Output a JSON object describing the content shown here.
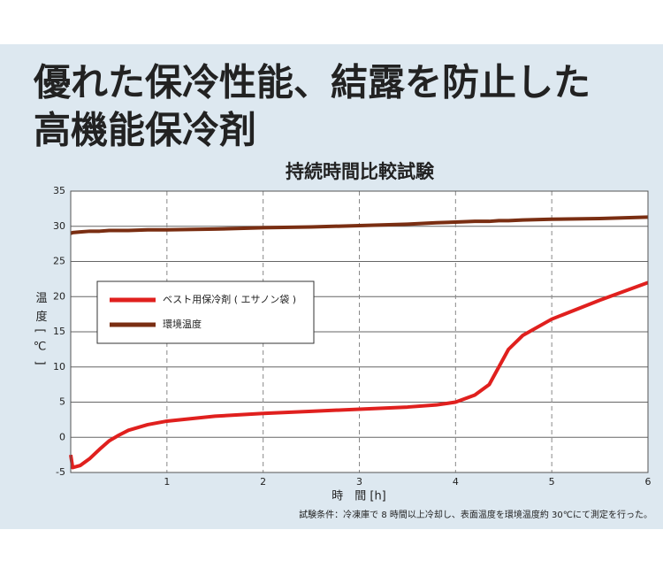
{
  "header": {
    "title_lines": [
      "優れた保冷性能、結露を防止した",
      "高機能保冷剤"
    ]
  },
  "chart_data": {
    "type": "line",
    "title": "持続時間比較試験",
    "y_label": "温度[℃]",
    "x_label": "時　間 [h]",
    "note": "試験条件：冷凍庫で 8 時間以上冷却し、表面温度を環境温度約 30℃にて測定を行った。",
    "x": [
      0,
      0.02,
      0.1,
      0.2,
      0.3,
      0.4,
      0.5,
      0.6,
      0.8,
      1,
      1.5,
      2,
      2.5,
      3,
      3.5,
      3.8,
      4,
      4.2,
      4.35,
      4.45,
      4.55,
      4.7,
      5,
      5.5,
      6
    ],
    "series": [
      {
        "name": "ベスト用保冷剤 ( エサノン袋 )",
        "color": "#e0201e",
        "values": [
          -2.5,
          -4.3,
          -4,
          -3,
          -1.7,
          -0.5,
          0.3,
          1,
          1.8,
          2.3,
          3,
          3.4,
          3.7,
          4,
          4.3,
          4.6,
          5,
          6,
          7.5,
          10,
          12.5,
          14.5,
          16.8,
          19.5,
          22
        ]
      },
      {
        "name": "環境温度",
        "color": "#7a2e12",
        "values": [
          29,
          29.1,
          29.2,
          29.3,
          29.3,
          29.4,
          29.4,
          29.4,
          29.5,
          29.5,
          29.6,
          29.8,
          29.9,
          30.1,
          30.3,
          30.5,
          30.6,
          30.7,
          30.7,
          30.8,
          30.8,
          30.9,
          31,
          31.1,
          31.3
        ]
      }
    ],
    "xlim": [
      0,
      6
    ],
    "xticks": [
      1,
      2,
      3,
      4,
      5,
      6
    ],
    "ylim": [
      -5,
      35
    ],
    "yticks": [
      -5,
      0,
      5,
      10,
      15,
      20,
      25,
      30,
      35
    ],
    "grid": true
  }
}
